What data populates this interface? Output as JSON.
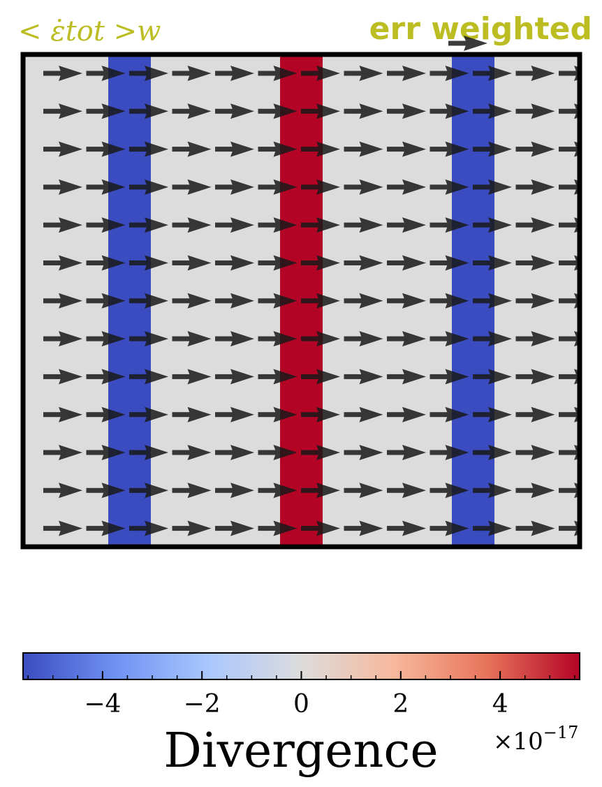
{
  "chart_data": {
    "type": "quiver",
    "title_left": "< ε̇tot >w",
    "title_right": "err weighted",
    "title_color": "#bcbd22",
    "background_value": 0,
    "field": {
      "direction": "+x",
      "grid_cols": 13,
      "grid_rows": 13,
      "arrow_color": "#1a1a1a"
    },
    "divergence_bands": [
      {
        "name": "left-band",
        "value": -5.5e-17,
        "color": "#3b4cc0"
      },
      {
        "name": "center-band",
        "value": 5.5e-17,
        "color": "#b40426"
      },
      {
        "name": "right-band",
        "value": -5.5e-17,
        "color": "#3b4cc0"
      }
    ],
    "colorbar": {
      "label": "Divergence",
      "range": [
        -5.6,
        5.6
      ],
      "ticks": [
        -4,
        -2,
        0,
        2,
        4
      ],
      "tick_labels": [
        "−4",
        "−2",
        "0",
        "2",
        "4"
      ],
      "scale_factor_base": "×10",
      "scale_factor_exp": "−17",
      "cmap": "coolwarm",
      "cmap_stops": [
        "#3b4cc0",
        "#6f92f3",
        "#aac7fd",
        "#dddcdc",
        "#f7b89c",
        "#e7745b",
        "#b40426"
      ]
    }
  }
}
